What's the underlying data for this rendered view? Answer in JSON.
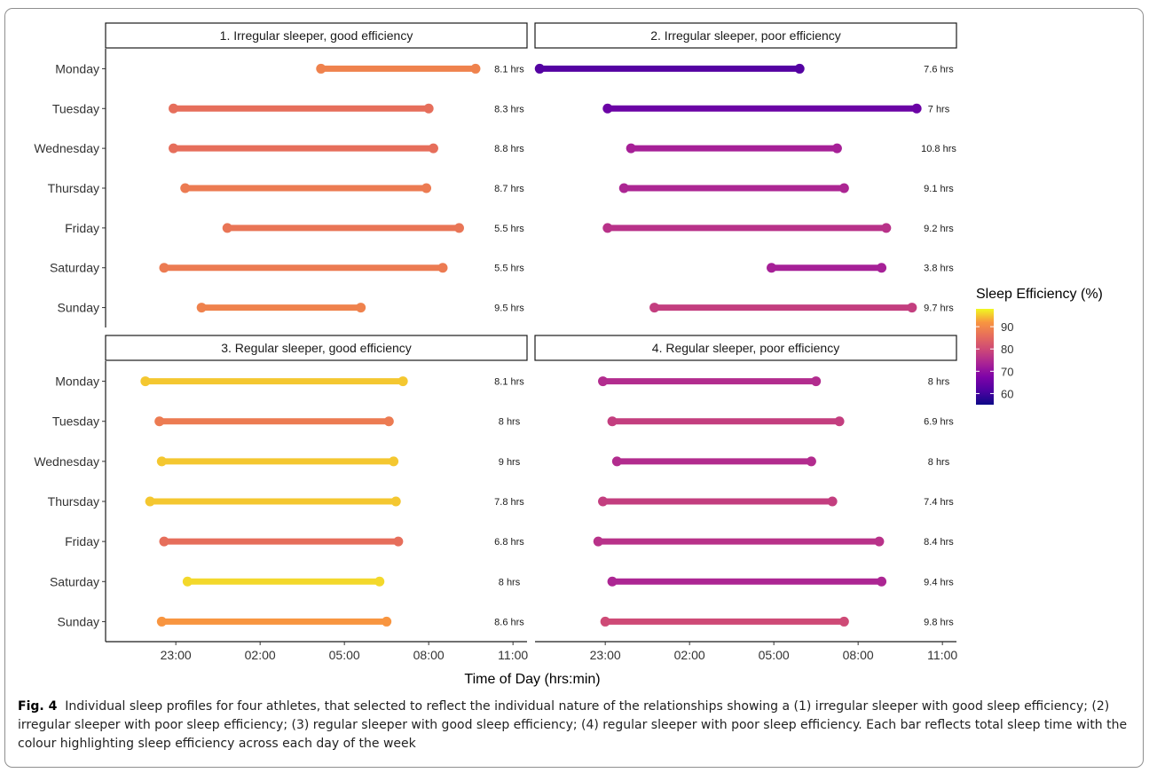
{
  "chart_data": {
    "type": "dumbbell",
    "xlabel": "Time of Day (hrs:min)",
    "x_ticks": [
      "23:00",
      "02:00",
      "05:00",
      "08:00",
      "11:00"
    ],
    "x_range": [
      "20:30",
      "11:30"
    ],
    "days": [
      "Monday",
      "Tuesday",
      "Wednesday",
      "Thursday",
      "Friday",
      "Saturday",
      "Sunday"
    ],
    "legend": {
      "title": "Sleep Efficiency (%)",
      "ticks": [
        90,
        80,
        70,
        60
      ],
      "range": [
        55,
        98
      ],
      "colormap": "plasma"
    },
    "panels": [
      {
        "title": "1. Irregular sleeper, good efficiency",
        "bars": [
          {
            "day": "Monday",
            "start": "04:10",
            "end": "09:40",
            "label": "8.1 hrs",
            "efficiency": 89
          },
          {
            "day": "Tuesday",
            "start": "22:55",
            "end": "08:00",
            "label": "8.3 hrs",
            "efficiency": 86
          },
          {
            "day": "Wednesday",
            "start": "22:55",
            "end": "08:10",
            "label": "8.8 hrs",
            "efficiency": 86
          },
          {
            "day": "Thursday",
            "start": "23:20",
            "end": "07:55",
            "label": "8.7 hrs",
            "efficiency": 88
          },
          {
            "day": "Friday",
            "start": "00:50",
            "end": "09:05",
            "label": "5.5 hrs",
            "efficiency": 87
          },
          {
            "day": "Saturday",
            "start": "22:35",
            "end": "08:30",
            "label": "5.5 hrs",
            "efficiency": 88
          },
          {
            "day": "Sunday",
            "start": "23:55",
            "end": "05:35",
            "label": "9.5 hrs",
            "efficiency": 89
          }
        ]
      },
      {
        "title": "2. Irregular sleeper, poor efficiency",
        "bars": [
          {
            "day": "Monday",
            "start": "20:40",
            "end": "05:55",
            "label": "7.6 hrs",
            "efficiency": 62
          },
          {
            "day": "Tuesday",
            "start": "23:05",
            "end": "10:05",
            "label": "7 hrs",
            "efficiency": 65
          },
          {
            "day": "Wednesday",
            "start": "23:55",
            "end": "07:15",
            "label": "10.8 hrs",
            "efficiency": 73
          },
          {
            "day": "Thursday",
            "start": "23:40",
            "end": "07:30",
            "label": "9.1 hrs",
            "efficiency": 74
          },
          {
            "day": "Friday",
            "start": "23:05",
            "end": "09:00",
            "label": "9.2 hrs",
            "efficiency": 76
          },
          {
            "day": "Saturday",
            "start": "04:55",
            "end": "08:50",
            "label": "3.8 hrs",
            "efficiency": 73
          },
          {
            "day": "Sunday",
            "start": "00:45",
            "end": "09:55",
            "label": "9.7 hrs",
            "efficiency": 78
          }
        ]
      },
      {
        "title": "3. Regular sleeper, good efficiency",
        "bars": [
          {
            "day": "Monday",
            "start": "21:55",
            "end": "07:05",
            "label": "8.1 hrs",
            "efficiency": 95
          },
          {
            "day": "Tuesday",
            "start": "22:25",
            "end": "06:35",
            "label": "8 hrs",
            "efficiency": 88
          },
          {
            "day": "Wednesday",
            "start": "22:30",
            "end": "06:45",
            "label": "9 hrs",
            "efficiency": 95
          },
          {
            "day": "Thursday",
            "start": "22:05",
            "end": "06:50",
            "label": "7.8 hrs",
            "efficiency": 95
          },
          {
            "day": "Friday",
            "start": "22:35",
            "end": "06:55",
            "label": "6.8 hrs",
            "efficiency": 86
          },
          {
            "day": "Saturday",
            "start": "23:25",
            "end": "06:15",
            "label": "8 hrs",
            "efficiency": 96
          },
          {
            "day": "Sunday",
            "start": "22:30",
            "end": "06:30",
            "label": "8.6 hrs",
            "efficiency": 92
          }
        ]
      },
      {
        "title": "4. Regular sleeper, poor efficiency",
        "bars": [
          {
            "day": "Monday",
            "start": "22:55",
            "end": "06:30",
            "label": "8 hrs",
            "efficiency": 75
          },
          {
            "day": "Tuesday",
            "start": "23:15",
            "end": "07:20",
            "label": "6.9 hrs",
            "efficiency": 78
          },
          {
            "day": "Wednesday",
            "start": "23:25",
            "end": "06:20",
            "label": "8 hrs",
            "efficiency": 75
          },
          {
            "day": "Thursday",
            "start": "22:55",
            "end": "07:05",
            "label": "7.4 hrs",
            "efficiency": 78
          },
          {
            "day": "Friday",
            "start": "22:45",
            "end": "08:45",
            "label": "8.4 hrs",
            "efficiency": 76
          },
          {
            "day": "Saturday",
            "start": "23:15",
            "end": "08:50",
            "label": "9.4 hrs",
            "efficiency": 74
          },
          {
            "day": "Sunday",
            "start": "23:00",
            "end": "07:30",
            "label": "9.8 hrs",
            "efficiency": 80
          }
        ]
      }
    ]
  },
  "caption": {
    "label": "Fig. 4",
    "text": "Individual sleep profiles for four athletes, that selected to reflect the individual nature of the relationships showing a (1) irregular sleeper with good sleep efficiency; (2) irregular sleeper with poor sleep efficiency; (3) regular sleeper with good sleep efficiency; (4) regular sleeper with poor sleep efficiency. Each bar reflects total sleep time with the colour highlighting sleep efficiency across each day of the week"
  }
}
